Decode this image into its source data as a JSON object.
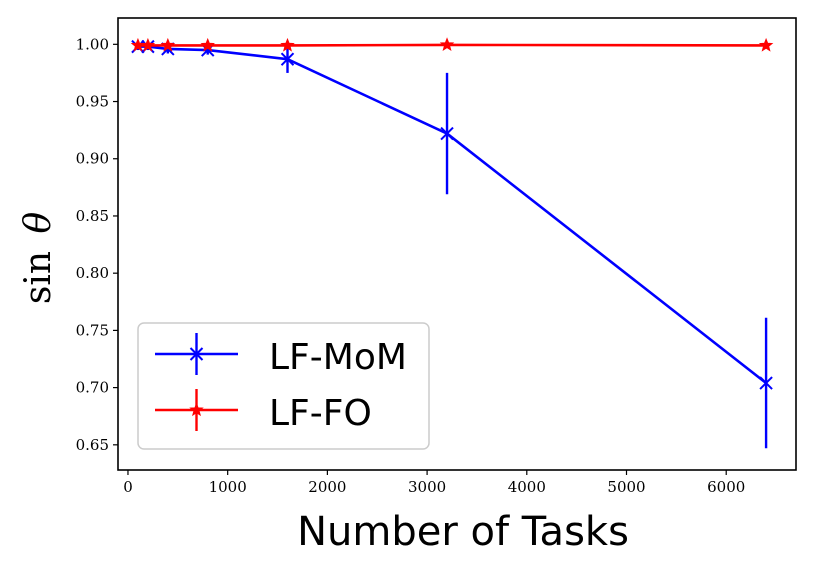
{
  "chart_data": {
    "type": "line",
    "title": "",
    "xlabel": "Number of Tasks",
    "ylabel_main": "sin",
    "ylabel_symbol": "θ",
    "xlim": [
      -100,
      6700
    ],
    "ylim": [
      0.628,
      1.023
    ],
    "x_ticks": [
      0,
      1000,
      2000,
      3000,
      4000,
      5000,
      6000
    ],
    "x_tick_labels": [
      "0",
      "1000",
      "2000",
      "3000",
      "4000",
      "5000",
      "6000"
    ],
    "y_ticks": [
      0.65,
      0.7,
      0.75,
      0.8,
      0.85,
      0.9,
      0.95,
      1.0
    ],
    "y_tick_labels": [
      "0.65",
      "0.70",
      "0.75",
      "0.80",
      "0.85",
      "0.90",
      "0.95",
      "1.00"
    ],
    "grid": false,
    "legend_position": "lower-left",
    "series": [
      {
        "name": "LF-MoM",
        "color": "#0000ff",
        "marker": "x",
        "x": [
          100,
          200,
          400,
          800,
          1600,
          3200,
          6400
        ],
        "y": [
          0.998,
          0.998,
          0.996,
          0.995,
          0.987,
          0.922,
          0.704
        ],
        "yerr": [
          0.003,
          0.003,
          0.004,
          0.004,
          0.012,
          0.053,
          0.057
        ]
      },
      {
        "name": "LF-FO",
        "color": "#ff0000",
        "marker": "star",
        "x": [
          100,
          200,
          400,
          800,
          1600,
          3200,
          6400
        ],
        "y": [
          0.999,
          0.999,
          0.999,
          0.999,
          0.999,
          0.9995,
          0.999
        ],
        "yerr": [
          0.001,
          0.001,
          0.0007,
          0.0007,
          0.0007,
          0.0007,
          0.0007
        ]
      }
    ]
  }
}
